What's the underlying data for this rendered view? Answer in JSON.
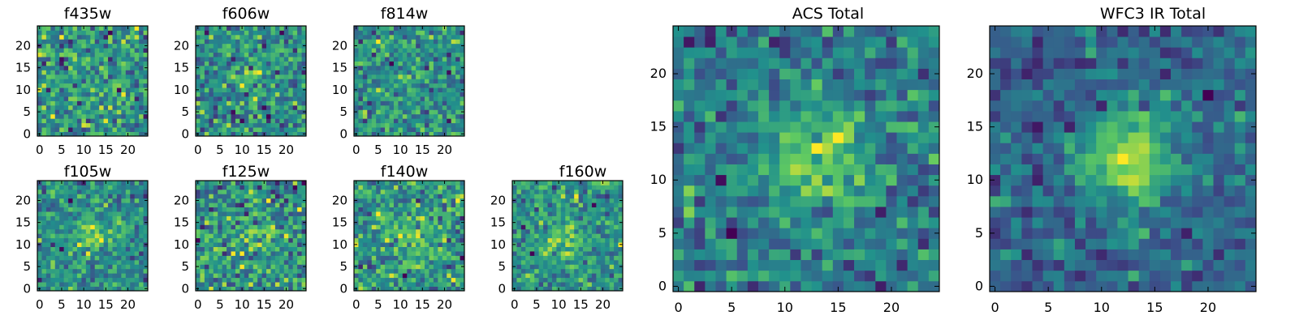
{
  "chart_data": [
    {
      "type": "heatmap",
      "title": "f435w",
      "xlim": [
        0,
        24
      ],
      "ylim": [
        0,
        24
      ],
      "xticks": [
        "0",
        "5",
        "10",
        "15",
        "20"
      ],
      "yticks": [
        "0",
        "5",
        "10",
        "15",
        "20"
      ],
      "colormap": "viridis",
      "seed": 11,
      "blob": 0.15,
      "noise": 1.0,
      "grid_n": 25
    },
    {
      "type": "heatmap",
      "title": "f606w",
      "xlim": [
        0,
        24
      ],
      "ylim": [
        0,
        24
      ],
      "xticks": [
        "0",
        "5",
        "10",
        "15",
        "20"
      ],
      "yticks": [
        "0",
        "5",
        "10",
        "15",
        "20"
      ],
      "colormap": "viridis",
      "seed": 22,
      "blob": 0.45,
      "noise": 0.9,
      "grid_n": 25
    },
    {
      "type": "heatmap",
      "title": "f814w",
      "xlim": [
        0,
        24
      ],
      "ylim": [
        0,
        24
      ],
      "xticks": [
        "0",
        "5",
        "10",
        "15",
        "20"
      ],
      "yticks": [
        "0",
        "5",
        "10",
        "15",
        "20"
      ],
      "colormap": "viridis",
      "seed": 33,
      "blob": 0.3,
      "noise": 1.0,
      "grid_n": 25
    },
    {
      "type": "heatmap",
      "title": "f105w",
      "xlim": [
        0,
        24
      ],
      "ylim": [
        0,
        24
      ],
      "xticks": [
        "0",
        "5",
        "10",
        "15",
        "20"
      ],
      "yticks": [
        "0",
        "5",
        "10",
        "15",
        "20"
      ],
      "colormap": "viridis",
      "seed": 44,
      "blob": 0.7,
      "noise": 0.8,
      "grid_n": 25
    },
    {
      "type": "heatmap",
      "title": "f125w",
      "xlim": [
        0,
        24
      ],
      "ylim": [
        0,
        24
      ],
      "xticks": [
        "0",
        "5",
        "10",
        "15",
        "20"
      ],
      "yticks": [
        "0",
        "5",
        "10",
        "15",
        "20"
      ],
      "colormap": "viridis",
      "seed": 55,
      "blob": 0.5,
      "noise": 0.95,
      "grid_n": 25
    },
    {
      "type": "heatmap",
      "title": "f140w",
      "xlim": [
        0,
        24
      ],
      "ylim": [
        0,
        24
      ],
      "xticks": [
        "0",
        "5",
        "10",
        "15",
        "20"
      ],
      "yticks": [
        "0",
        "5",
        "10",
        "15",
        "20"
      ],
      "colormap": "viridis",
      "seed": 66,
      "blob": 0.65,
      "noise": 0.9,
      "grid_n": 25
    },
    {
      "type": "heatmap",
      "title": "f160w",
      "xlim": [
        0,
        24
      ],
      "ylim": [
        0,
        24
      ],
      "xticks": [
        "0",
        "5",
        "10",
        "15",
        "20"
      ],
      "yticks": [
        "0",
        "5",
        "10",
        "15",
        "20"
      ],
      "colormap": "viridis",
      "seed": 77,
      "blob": 0.55,
      "noise": 0.9,
      "grid_n": 25
    },
    {
      "type": "heatmap",
      "title": "ACS Total",
      "xlim": [
        0,
        24
      ],
      "ylim": [
        0,
        24
      ],
      "xticks": [
        "0",
        "5",
        "10",
        "15",
        "20"
      ],
      "yticks": [
        "0",
        "5",
        "10",
        "15",
        "20"
      ],
      "colormap": "viridis",
      "seed": 88,
      "blob": 0.9,
      "noise": 0.75,
      "grid_n": 25
    },
    {
      "type": "heatmap",
      "title": "WFC3 IR Total",
      "xlim": [
        0,
        24
      ],
      "ylim": [
        0,
        24
      ],
      "xticks": [
        "0",
        "5",
        "10",
        "15",
        "20"
      ],
      "yticks": [
        "0",
        "5",
        "10",
        "15",
        "20"
      ],
      "colormap": "viridis",
      "seed": 99,
      "blob": 1.3,
      "noise": 0.55,
      "grid_n": 25
    }
  ],
  "colors": {
    "colormap_stops": [
      "#440154",
      "#3b528b",
      "#21918c",
      "#5ec962",
      "#fde725"
    ],
    "frame": "#000000",
    "background": "#ffffff"
  }
}
